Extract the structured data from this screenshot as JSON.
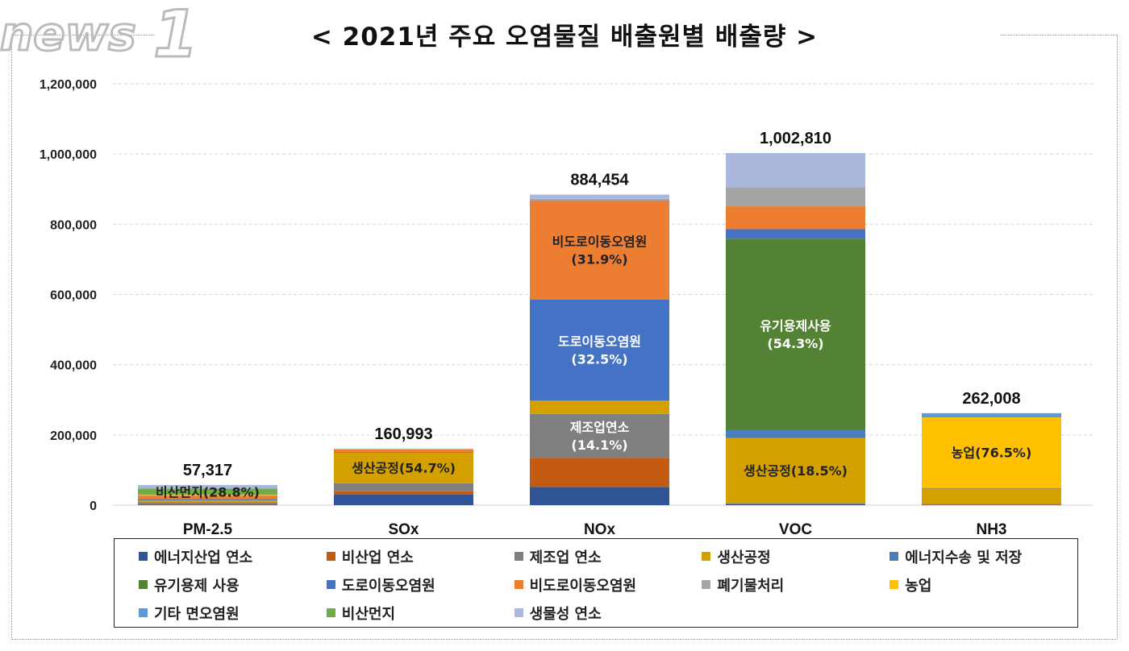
{
  "chart_data": {
    "type": "bar",
    "stacked": true,
    "title": "< 2021년 주요 오염물질 배출원별 배출량 >",
    "xlabel": "",
    "ylabel": "",
    "ylim": [
      0,
      1200000
    ],
    "yticks": [
      0,
      200000,
      400000,
      600000,
      800000,
      1000000,
      1200000
    ],
    "ytick_labels": [
      "0",
      "200,000",
      "400,000",
      "600,000",
      "800,000",
      "1,000,000",
      "1,200,000"
    ],
    "grid": true,
    "legend_position": "bottom",
    "categories": [
      "PM-2.5",
      "SOx",
      "NOx",
      "VOC",
      "NH3"
    ],
    "totals": [
      57317,
      160993,
      884454,
      1002810,
      262008
    ],
    "total_labels": [
      "57,317",
      "160,993",
      "884,454",
      "1,002,810",
      "262,008"
    ],
    "series": [
      {
        "name": "에너지산업 연소",
        "color": "#2F5597",
        "values": [
          1000,
          30000,
          52000,
          3000,
          1000
        ]
      },
      {
        "name": "비산업 연소",
        "color": "#C55A11",
        "values": [
          2700,
          9500,
          83000,
          2000,
          1000
        ]
      },
      {
        "name": "제조업 연소",
        "color": "#7F7F7F",
        "values": [
          4500,
          23000,
          124700,
          1000,
          2000
        ]
      },
      {
        "name": "생산공정",
        "color": "#D4A000",
        "values": [
          5900,
          88063,
          38000,
          185520,
          43000
        ]
      },
      {
        "name": "에너지수송 및 저장",
        "color": "#4A7EBB",
        "values": [
          0,
          100,
          0,
          23000,
          0
        ]
      },
      {
        "name": "유기용제 사용",
        "color": "#548235",
        "values": [
          0,
          0,
          0,
          544526,
          0
        ]
      },
      {
        "name": "도로이동오염원",
        "color": "#4472C4",
        "values": [
          3600,
          300,
          287450,
          27000,
          1500
        ]
      },
      {
        "name": "비도로이동오염원",
        "color": "#ED7D31",
        "values": [
          9400,
          7500,
          282140,
          65000,
          300
        ]
      },
      {
        "name": "폐기물처리",
        "color": "#A5A5A5",
        "values": [
          1200,
          1500,
          5000,
          54000,
          772
        ]
      },
      {
        "name": "농업",
        "color": "#FFC000",
        "values": [
          2000,
          0,
          0,
          0,
          200436
        ]
      },
      {
        "name": "기타 면오염원",
        "color": "#5B9BD5",
        "values": [
          500,
          0,
          0,
          0,
          12000
        ]
      },
      {
        "name": "비산먼지",
        "color": "#70AD47",
        "values": [
          16507,
          0,
          0,
          0,
          0
        ]
      },
      {
        "name": "생물성 연소",
        "color": "#A9B8DC",
        "values": [
          10010,
          1030,
          12164,
          97764,
          0
        ]
      }
    ],
    "annotations": [
      {
        "category": "PM-2.5",
        "series": "비산먼지",
        "lines": [
          "비산먼지(28.8%)"
        ],
        "color": "#222222"
      },
      {
        "category": "SOx",
        "series": "생산공정",
        "lines": [
          "생산공정(54.7%)"
        ],
        "color": "#222222"
      },
      {
        "category": "NOx",
        "series": "제조업 연소",
        "lines": [
          "제조업연소",
          "(14.1%)"
        ],
        "color": "#FFFFFF"
      },
      {
        "category": "NOx",
        "series": "도로이동오염원",
        "lines": [
          "도로이동오염원",
          "(32.5%)"
        ],
        "color": "#FFFFFF"
      },
      {
        "category": "NOx",
        "series": "비도로이동오염원",
        "lines": [
          "비도로이동오염원",
          "(31.9%)"
        ],
        "color": "#222222"
      },
      {
        "category": "VOC",
        "series": "생산공정",
        "lines": [
          "생산공정(18.5%)"
        ],
        "color": "#222222"
      },
      {
        "category": "VOC",
        "series": "유기용제 사용",
        "lines": [
          "유기용제사용",
          "(54.3%)"
        ],
        "color": "#FFFFFF"
      },
      {
        "category": "NH3",
        "series": "농업",
        "lines": [
          "농업(76.5%)"
        ],
        "color": "#222222"
      }
    ]
  },
  "watermark": "news1"
}
